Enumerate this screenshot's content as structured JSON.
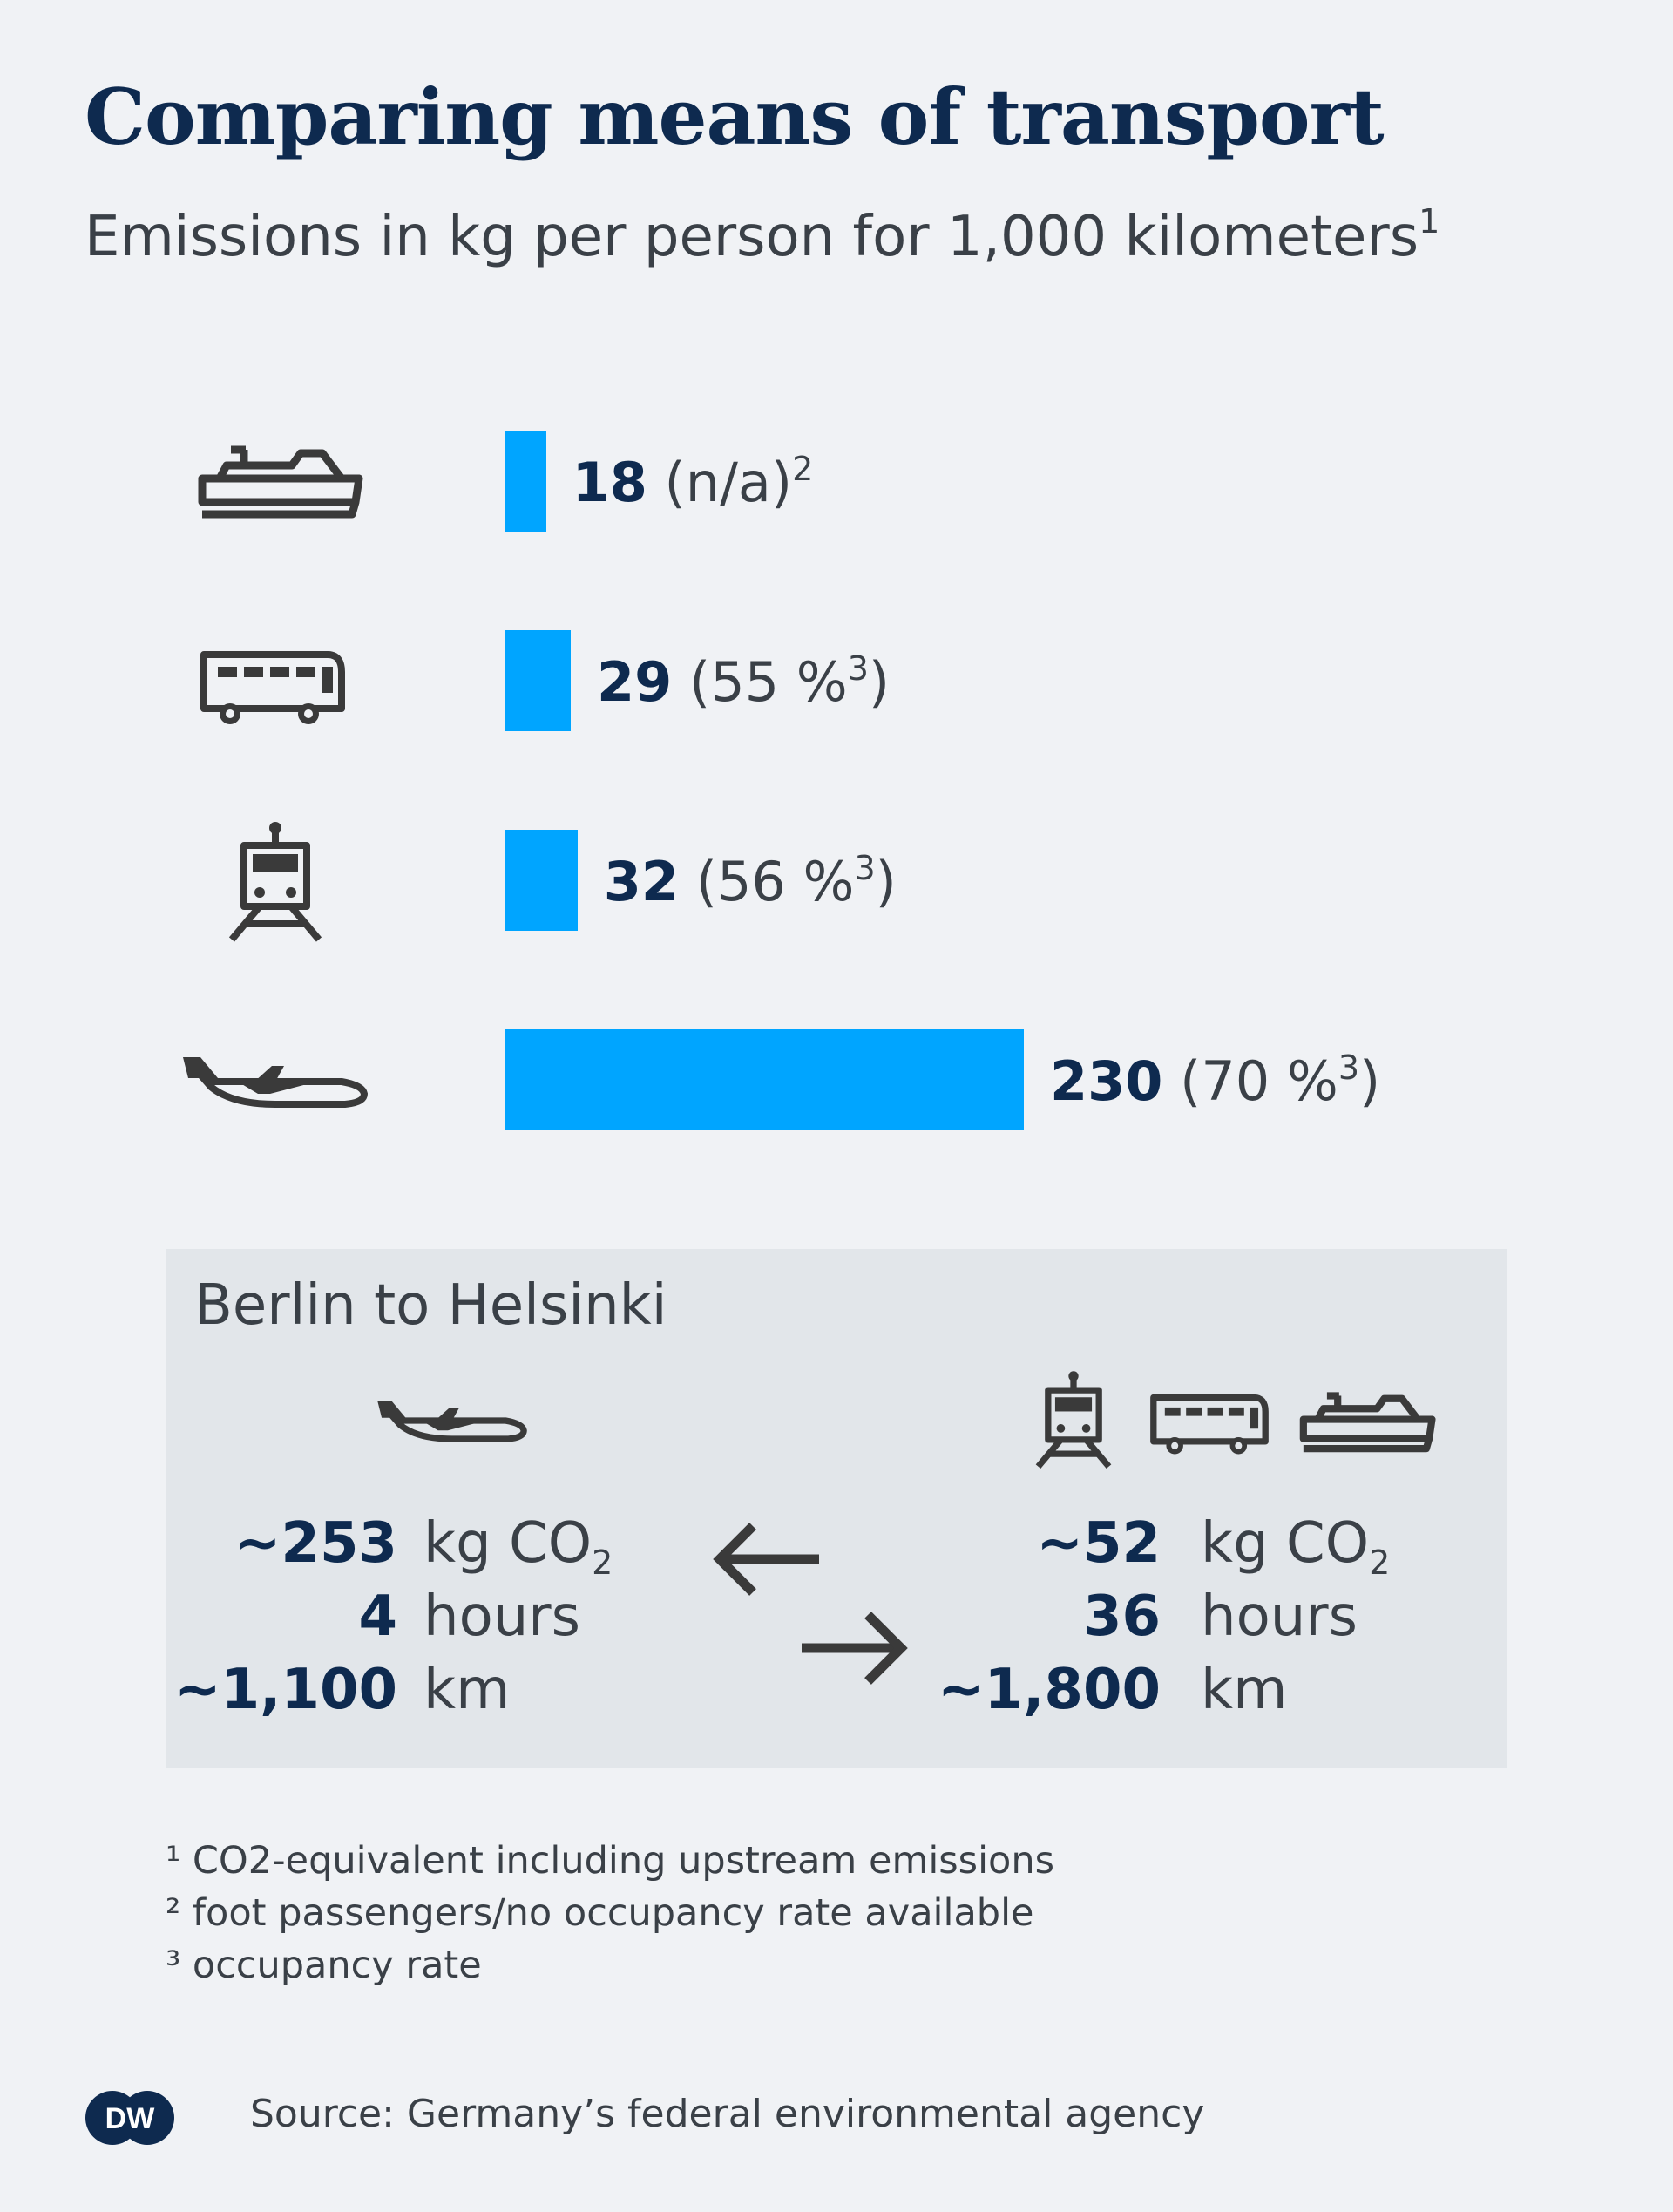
{
  "header": {
    "title": "Comparing means of transport",
    "subtitle": "Emissions in kg per person for 1,000 kilometers",
    "subtitle_note": "1"
  },
  "chart_data": {
    "type": "bar",
    "title": "Comparing means of transport",
    "subtitle": "Emissions in kg per person for 1,000 kilometers¹",
    "categories": [
      "ship-icon",
      "bus-icon",
      "train-icon",
      "plane-icon"
    ],
    "values": [
      18,
      29,
      32,
      230
    ],
    "labels": [
      {
        "value": "18",
        "extra": " (n/a)",
        "note": "2"
      },
      {
        "value": "29",
        "extra": " (55 %",
        "note": "3",
        "close": ")"
      },
      {
        "value": "32",
        "extra": " (56 %",
        "note": "3",
        "close": ")"
      },
      {
        "value": "230",
        "extra": " (70 %",
        "note": "3",
        "close": ")"
      }
    ],
    "xlim": [
      0,
      230
    ],
    "bar_color": "#00a5ff"
  },
  "comparison": {
    "title": "Berlin to Helsinki",
    "left": {
      "icons": [
        "plane-icon"
      ],
      "co2_value": "~253",
      "co2_unit": "kg CO",
      "co2_sub": "2",
      "hours_value": "4",
      "hours_unit": "hours",
      "km_value": "~1,100",
      "km_unit": "km"
    },
    "right": {
      "icons": [
        "train-icon",
        "bus-icon",
        "ship-icon"
      ],
      "co2_value": "~52",
      "co2_unit": "kg CO",
      "co2_sub": "2",
      "hours_value": "36",
      "hours_unit": "hours",
      "km_value": "~1,800",
      "km_unit": "km"
    },
    "arrows": [
      "arrow-left-icon",
      "arrow-right-icon"
    ]
  },
  "footnotes": [
    "¹ CO2-equivalent including upstream emissions",
    "² foot passengers/no occupancy rate available",
    "³ occupancy rate"
  ],
  "footer": {
    "logo": "DW",
    "source": "Source: Germany’s federal environmental agency"
  },
  "colors": {
    "background": "#f0f2f5",
    "panel": "#e2e6ea",
    "navy": "#0e2a4f",
    "text": "#3a4047",
    "bar": "#00a5ff",
    "icon": "#3a3a3a"
  }
}
